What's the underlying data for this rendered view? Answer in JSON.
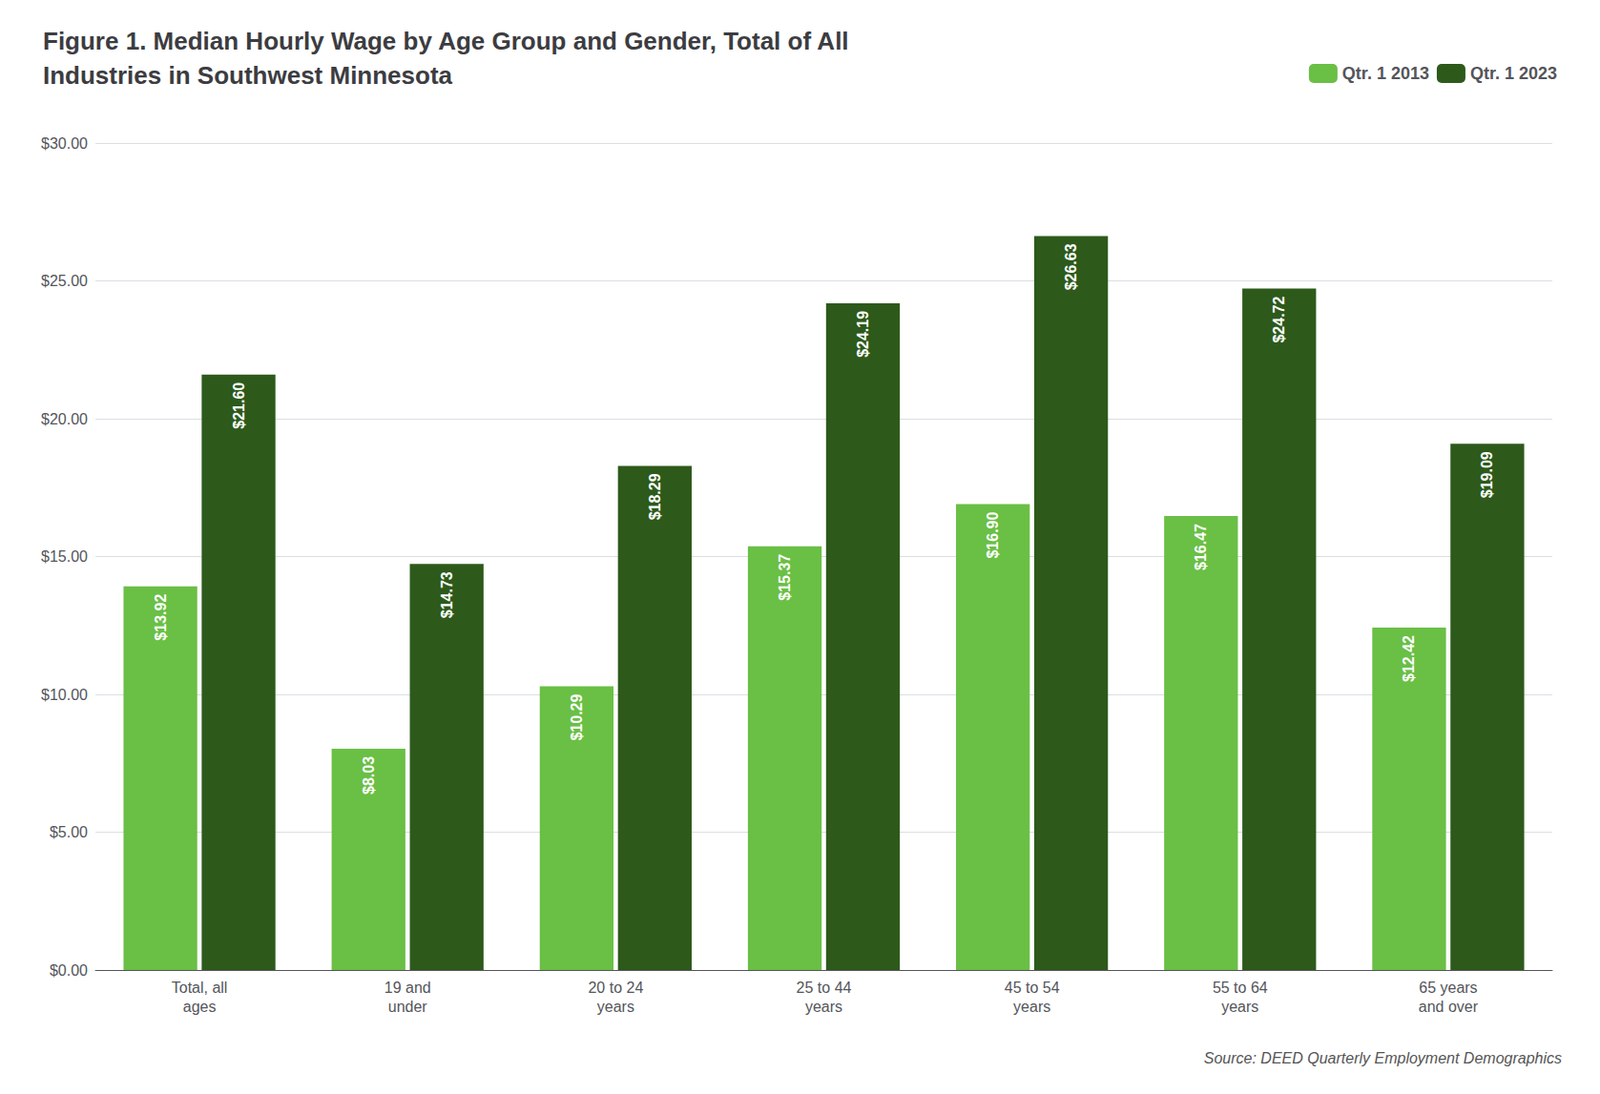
{
  "chart_data": {
    "type": "bar",
    "title": "Figure 1. Median Hourly Wage by Age Group and Gender, Total of All\nIndustries in Southwest Minnesota",
    "categories": [
      "Total, all\nages",
      "19 and\nunder",
      "20 to 24\nyears",
      "25 to 44\nyears",
      "45 to 54\nyears",
      "55 to 64\nyears",
      "65 years\nand over"
    ],
    "series": [
      {
        "name": "Qtr. 1 2013",
        "color": "#6abf45",
        "values": [
          13.92,
          8.03,
          10.29,
          15.37,
          16.9,
          16.47,
          12.42
        ],
        "value_labels": [
          "$13.92",
          "$8.03",
          "$10.29",
          "$15.37",
          "$16.90",
          "$16.47",
          "$12.42"
        ]
      },
      {
        "name": "Qtr. 1 2023",
        "color": "#2d5a1b",
        "values": [
          21.6,
          14.73,
          18.29,
          24.19,
          26.63,
          24.72,
          19.09
        ],
        "value_labels": [
          "$21.60",
          "$14.73",
          "$18.29",
          "$24.19",
          "$26.63",
          "$24.72",
          "$19.09"
        ]
      }
    ],
    "ylim": [
      0,
      30
    ],
    "yticks": [
      {
        "value": 0,
        "label": "$0.00"
      },
      {
        "value": 5,
        "label": "$5.00"
      },
      {
        "value": 10,
        "label": "$10.00"
      },
      {
        "value": 15,
        "label": "$15.00"
      },
      {
        "value": 20,
        "label": "$20.00"
      },
      {
        "value": 25,
        "label": "$25.00"
      },
      {
        "value": 30,
        "label": "$30.00"
      }
    ],
    "grid": true,
    "legend": "top",
    "data_labels": true,
    "annotations": [
      "Source: DEED Quarterly Employment Demographics"
    ]
  }
}
